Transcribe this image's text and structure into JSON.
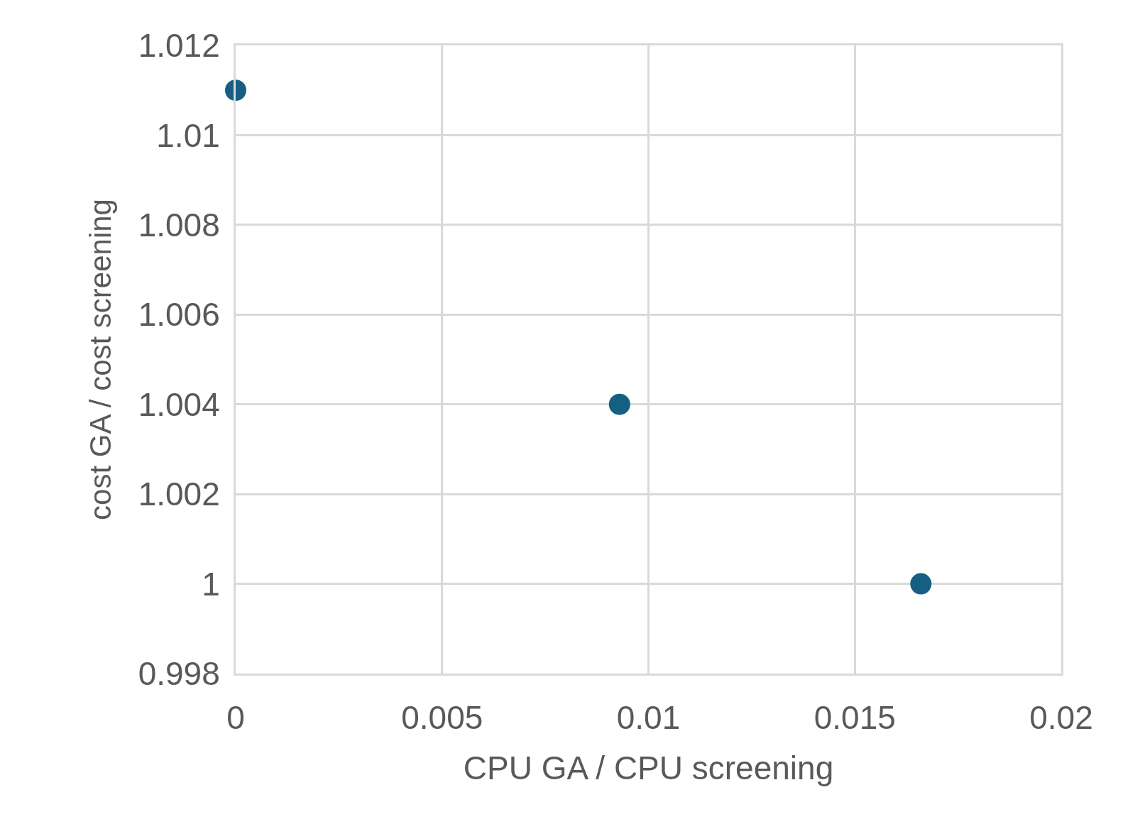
{
  "chart_data": {
    "type": "scatter",
    "xlabel": "CPU GA / CPU screening",
    "ylabel": "cost GA / cost screening",
    "x": [
      0,
      0.0093,
      0.0166
    ],
    "series": [
      {
        "color": "#155f82",
        "values": [
          1.011,
          1.004,
          1.0
        ]
      }
    ],
    "xlim": [
      0,
      0.02
    ],
    "xticks": [
      0,
      0.005,
      0.01,
      0.015,
      0.02
    ],
    "ylim": [
      0.998,
      1.012
    ],
    "yticks": [
      0.998,
      1,
      1.002,
      1.004,
      1.006,
      1.008,
      1.01,
      1.012
    ],
    "grid": true,
    "marker": "circle"
  }
}
